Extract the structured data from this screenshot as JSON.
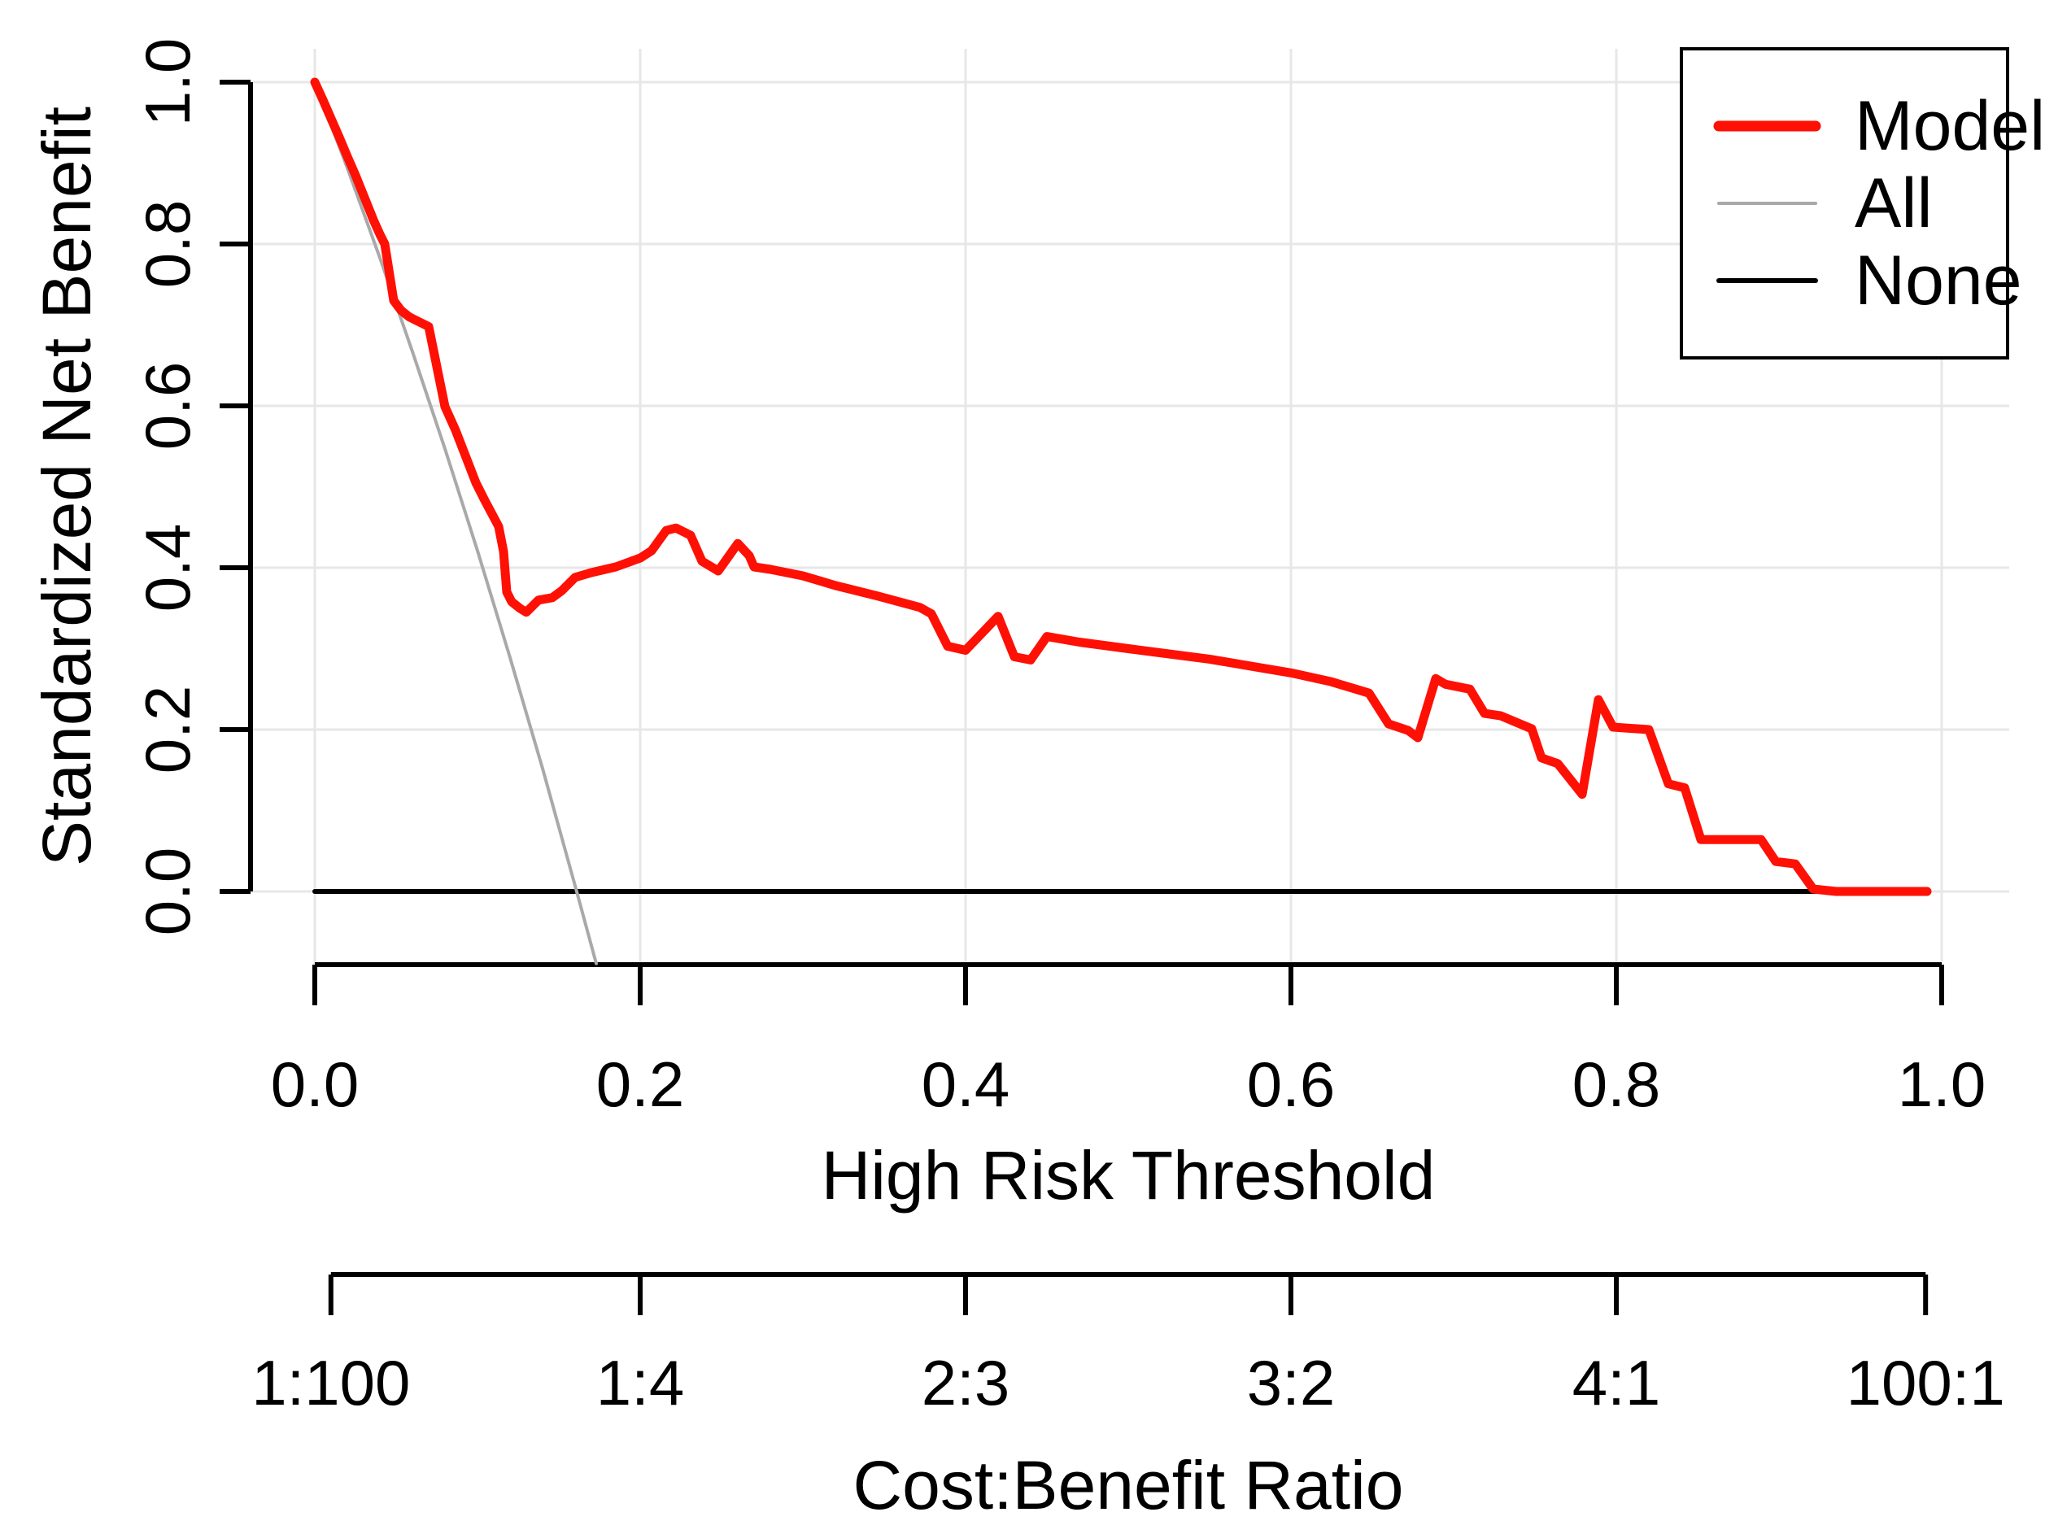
{
  "figure": {
    "background": "#ffffff",
    "text_color": "#000000",
    "grid_color": "#e7e7e7"
  },
  "chart_data": {
    "type": "line",
    "title": "",
    "xlabel": "High Risk Threshold",
    "ylabel": "Standardized Net Benefit",
    "secondary_xlabel": "Cost:Benefit Ratio",
    "xlim": [
      0,
      1
    ],
    "ylim": [
      0,
      1
    ],
    "grid": true,
    "x_ticks": {
      "values": [
        0.0,
        0.2,
        0.4,
        0.6,
        0.8,
        1.0
      ],
      "labels": [
        "0.0",
        "0.2",
        "0.4",
        "0.6",
        "0.8",
        "1.0"
      ]
    },
    "y_ticks": {
      "values": [
        0.0,
        0.2,
        0.4,
        0.6,
        0.8,
        1.0
      ],
      "labels": [
        "0.0",
        "0.2",
        "0.4",
        "0.6",
        "0.8",
        "1.0"
      ]
    },
    "cost_benefit_ticks": {
      "positions": [
        0.0099,
        0.2,
        0.4,
        0.6,
        0.8,
        0.9901
      ],
      "labels": [
        "1:100",
        "1:4",
        "2:3",
        "3:2",
        "4:1",
        "100:1"
      ]
    },
    "legend": {
      "position": "top-right",
      "entries": [
        {
          "label": "Model",
          "color": "#ff1005",
          "sample_width": 13
        },
        {
          "label": "All",
          "color": "#a9a9a9",
          "sample_width": 4
        },
        {
          "label": "None",
          "color": "#000000",
          "sample_width": 6
        }
      ]
    },
    "series": [
      {
        "name": "None",
        "color": "#000000",
        "stroke_width": 6,
        "points": [
          [
            0.0,
            0.0
          ],
          [
            0.991,
            0.0
          ]
        ]
      },
      {
        "name": "All",
        "color": "#a9a9a9",
        "stroke_width": 4,
        "points": [
          [
            0.0,
            1.0
          ],
          [
            0.02,
            0.894
          ],
          [
            0.04,
            0.783
          ],
          [
            0.06,
            0.667
          ],
          [
            0.08,
            0.547
          ],
          [
            0.1,
            0.421
          ],
          [
            0.12,
            0.289
          ],
          [
            0.14,
            0.152
          ],
          [
            0.16,
            0.007
          ],
          [
            0.173,
            -0.089
          ]
        ]
      },
      {
        "name": "Model",
        "color": "#ff1005",
        "stroke_width": 11,
        "points": [
          [
            0.0,
            1.0
          ],
          [
            0.005,
            0.978
          ],
          [
            0.01,
            0.955
          ],
          [
            0.015,
            0.932
          ],
          [
            0.02,
            0.908
          ],
          [
            0.025,
            0.885
          ],
          [
            0.03,
            0.86
          ],
          [
            0.036,
            0.83
          ],
          [
            0.04,
            0.812
          ],
          [
            0.043,
            0.8
          ],
          [
            0.0485,
            0.73
          ],
          [
            0.053,
            0.718
          ],
          [
            0.058,
            0.71
          ],
          [
            0.07,
            0.698
          ],
          [
            0.08,
            0.599
          ],
          [
            0.0865,
            0.57
          ],
          [
            0.099,
            0.505
          ],
          [
            0.104,
            0.485
          ],
          [
            0.113,
            0.451
          ],
          [
            0.116,
            0.42
          ],
          [
            0.118,
            0.37
          ],
          [
            0.121,
            0.358
          ],
          [
            0.126,
            0.35
          ],
          [
            0.13,
            0.345
          ],
          [
            0.1375,
            0.36
          ],
          [
            0.146,
            0.363
          ],
          [
            0.152,
            0.372
          ],
          [
            0.16,
            0.388
          ],
          [
            0.17,
            0.394
          ],
          [
            0.185,
            0.401
          ],
          [
            0.2,
            0.412
          ],
          [
            0.207,
            0.421
          ],
          [
            0.216,
            0.446
          ],
          [
            0.222,
            0.449
          ],
          [
            0.231,
            0.44
          ],
          [
            0.238,
            0.408
          ],
          [
            0.248,
            0.396
          ],
          [
            0.26,
            0.43
          ],
          [
            0.267,
            0.415
          ],
          [
            0.27,
            0.401
          ],
          [
            0.28,
            0.398
          ],
          [
            0.3,
            0.39
          ],
          [
            0.32,
            0.378
          ],
          [
            0.346,
            0.365
          ],
          [
            0.372,
            0.351
          ],
          [
            0.379,
            0.343
          ],
          [
            0.389,
            0.303
          ],
          [
            0.4,
            0.298
          ],
          [
            0.42,
            0.34
          ],
          [
            0.43,
            0.29
          ],
          [
            0.44,
            0.286
          ],
          [
            0.45,
            0.315
          ],
          [
            0.47,
            0.308
          ],
          [
            0.5,
            0.3
          ],
          [
            0.55,
            0.287
          ],
          [
            0.6,
            0.27
          ],
          [
            0.625,
            0.259
          ],
          [
            0.648,
            0.245
          ],
          [
            0.66,
            0.207
          ],
          [
            0.672,
            0.199
          ],
          [
            0.678,
            0.19
          ],
          [
            0.689,
            0.263
          ],
          [
            0.695,
            0.256
          ],
          [
            0.71,
            0.25
          ],
          [
            0.719,
            0.22
          ],
          [
            0.729,
            0.217
          ],
          [
            0.748,
            0.201
          ],
          [
            0.754,
            0.165
          ],
          [
            0.764,
            0.158
          ],
          [
            0.779,
            0.12
          ],
          [
            0.789,
            0.237
          ],
          [
            0.798,
            0.203
          ],
          [
            0.82,
            0.2
          ],
          [
            0.832,
            0.133
          ],
          [
            0.842,
            0.128
          ],
          [
            0.852,
            0.064
          ],
          [
            0.889,
            0.064
          ],
          [
            0.898,
            0.037
          ],
          [
            0.91,
            0.034
          ],
          [
            0.921,
            0.003
          ],
          [
            0.935,
            0.0
          ],
          [
            0.991,
            0.0
          ]
        ]
      }
    ]
  }
}
